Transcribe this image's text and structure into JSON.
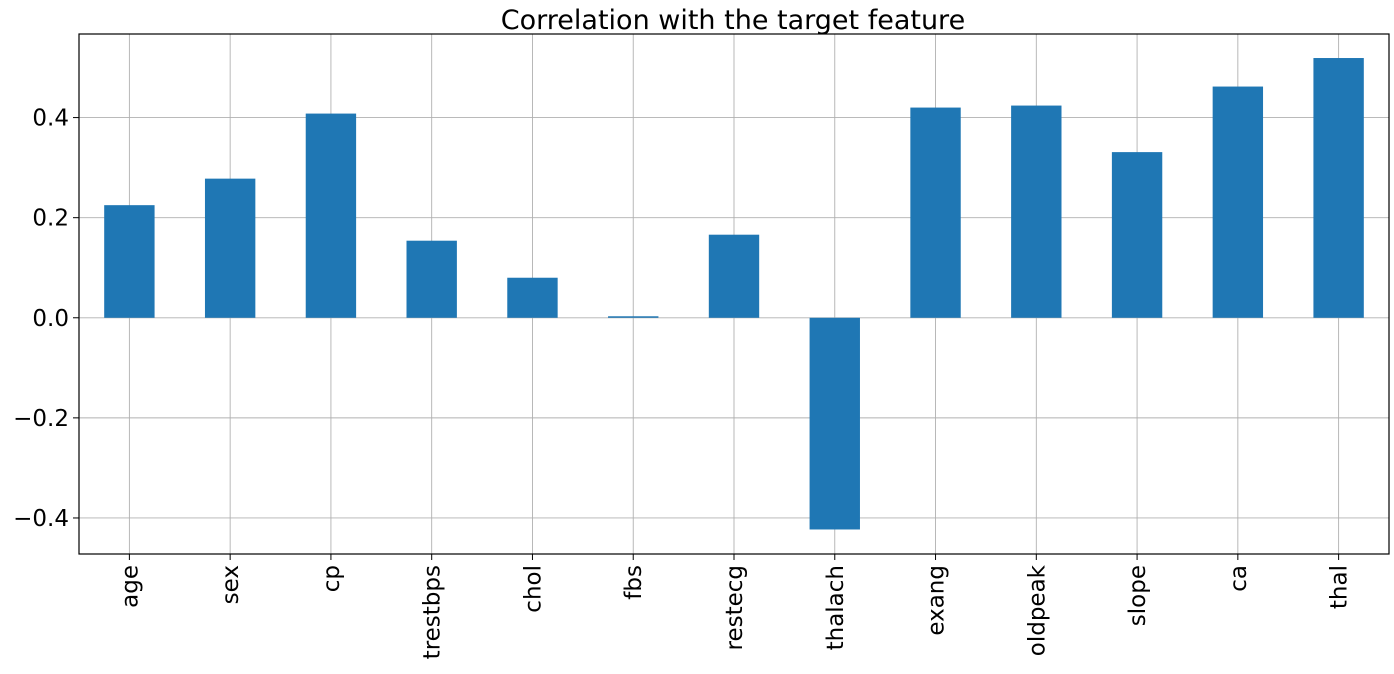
{
  "chart_data": {
    "type": "bar",
    "title": "Correlation with the target feature",
    "xlabel": "",
    "ylabel": "",
    "categories": [
      "age",
      "sex",
      "cp",
      "trestbps",
      "chol",
      "fbs",
      "restecg",
      "thalach",
      "exang",
      "oldpeak",
      "slope",
      "ca",
      "thal"
    ],
    "values": [
      0.225,
      0.278,
      0.408,
      0.154,
      0.08,
      0.003,
      0.166,
      -0.423,
      0.42,
      0.424,
      0.331,
      0.462,
      0.519
    ],
    "ylim": [
      -0.472,
      0.567
    ],
    "yticks": [
      -0.4,
      -0.2,
      0.0,
      0.2,
      0.4
    ],
    "ytick_labels": [
      "−0.4",
      "−0.2",
      "0.0",
      "0.2",
      "0.4"
    ],
    "grid": true,
    "bar_color": "#1f77b4"
  }
}
